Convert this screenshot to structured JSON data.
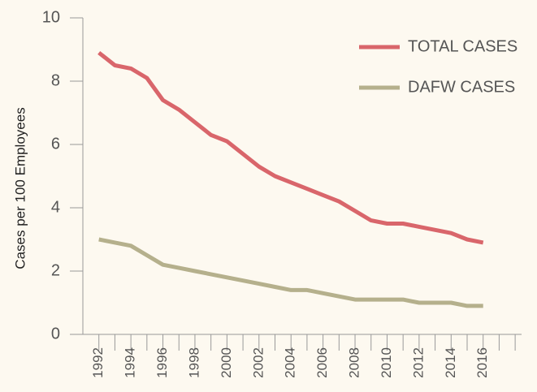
{
  "chart_data": {
    "type": "line",
    "y_label": "Cases per 100 Employees",
    "x": [
      1992,
      1993,
      1994,
      1995,
      1996,
      1997,
      1998,
      1999,
      2000,
      2001,
      2002,
      2003,
      2004,
      2005,
      2006,
      2007,
      2008,
      2009,
      2010,
      2011,
      2012,
      2013,
      2014,
      2015,
      2016
    ],
    "series": [
      {
        "name": "TOTAL CASES",
        "color": "#d9666b",
        "values": [
          8.9,
          8.5,
          8.4,
          8.1,
          7.4,
          7.1,
          6.7,
          6.3,
          6.1,
          5.7,
          5.3,
          5.0,
          4.8,
          4.6,
          4.4,
          4.2,
          3.9,
          3.6,
          3.5,
          3.5,
          3.4,
          3.3,
          3.2,
          3.0,
          2.9
        ]
      },
      {
        "name": "DAFW CASES",
        "color": "#b5b08c",
        "values": [
          3.0,
          2.9,
          2.8,
          2.5,
          2.2,
          2.1,
          2.0,
          1.9,
          1.8,
          1.7,
          1.6,
          1.5,
          1.4,
          1.4,
          1.3,
          1.2,
          1.1,
          1.1,
          1.1,
          1.1,
          1.0,
          1.0,
          1.0,
          0.9,
          0.9
        ]
      }
    ],
    "xlim": [
      1991,
      2018.4
    ],
    "xticks": [
      1992,
      1994,
      1996,
      1998,
      2000,
      2002,
      2004,
      2006,
      2008,
      2010,
      2012,
      2014,
      2016
    ],
    "minor_xticks": [
      1993,
      1995,
      1997,
      1999,
      2001,
      2003,
      2005,
      2007,
      2009,
      2011,
      2013,
      2015,
      2017,
      2018
    ],
    "ylim": [
      0,
      10
    ],
    "yticks": [
      0,
      2,
      4,
      6,
      8,
      10
    ],
    "legend": "top-right"
  }
}
